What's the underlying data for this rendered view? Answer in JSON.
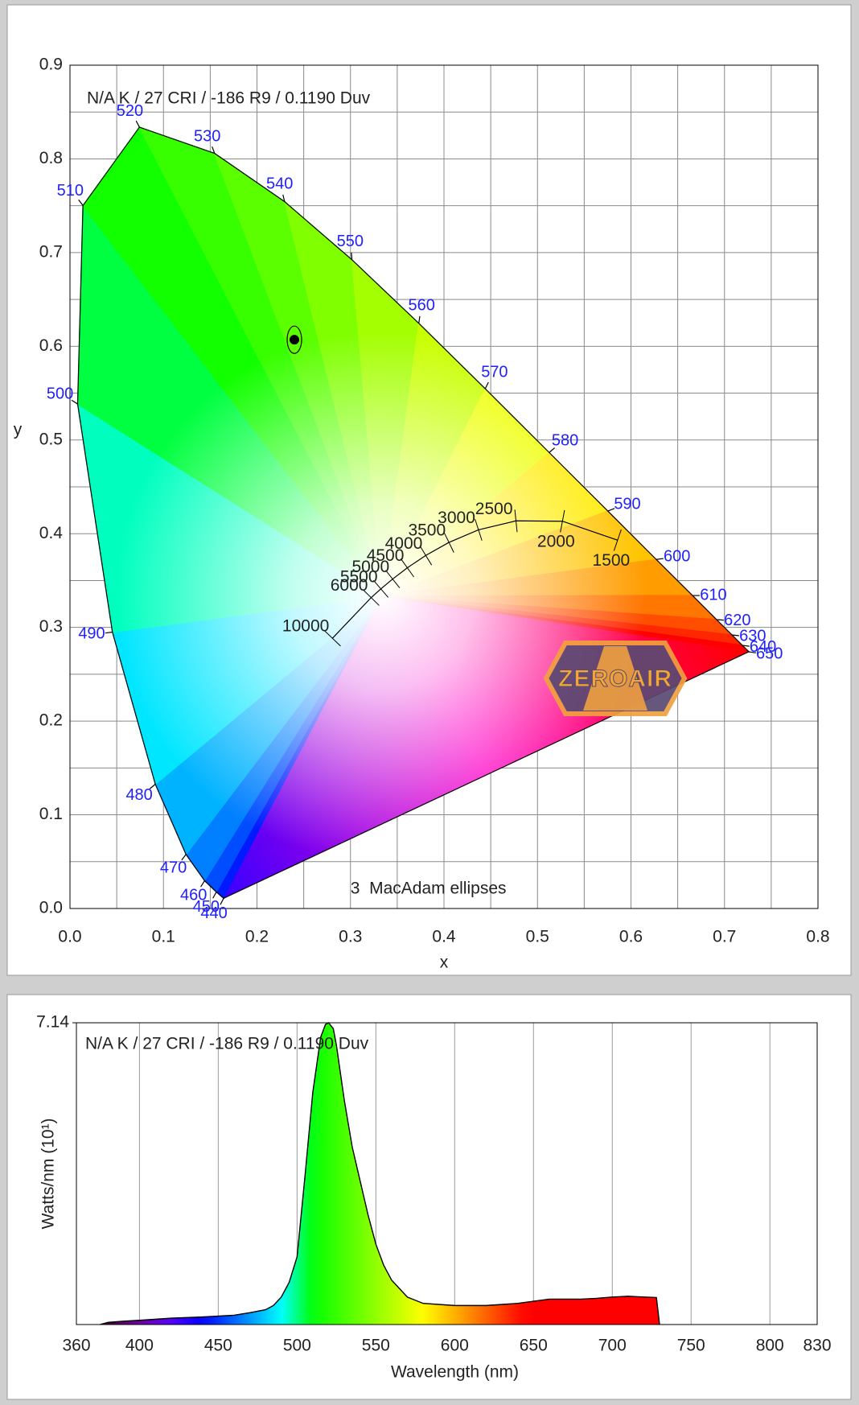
{
  "chart_data": [
    {
      "type": "chromaticity",
      "annotation": "N/A K / 27 CRI / -186 R9 / 0.1190 Duv",
      "x_label": "x",
      "y_label": "y",
      "xlim": [
        0,
        0.8
      ],
      "ylim": [
        0,
        0.9
      ],
      "xticks": [
        {
          "value": 0,
          "label": "0.0"
        },
        0.1,
        0.2,
        0.3,
        0.4,
        0.5,
        0.6,
        0.7,
        0.8
      ],
      "yticks": [
        {
          "value": 0,
          "label": "0.0"
        },
        0.1,
        0.2,
        0.3,
        0.4,
        0.5,
        0.6,
        0.7,
        0.8,
        0.9
      ],
      "grid": true,
      "locus": {
        "wavelengths": [
          440,
          450,
          460,
          470,
          480,
          490,
          500,
          510,
          520,
          530,
          540,
          550,
          560,
          570,
          580,
          590,
          600,
          610,
          620,
          630,
          640,
          650
        ],
        "x": [
          0.1644,
          0.1566,
          0.144,
          0.1241,
          0.0913,
          0.0454,
          0.0082,
          0.0139,
          0.0743,
          0.1547,
          0.2296,
          0.3016,
          0.3731,
          0.4441,
          0.5125,
          0.5752,
          0.627,
          0.6658,
          0.6915,
          0.7079,
          0.719,
          0.726
        ],
        "y": [
          0.0109,
          0.0177,
          0.0297,
          0.0578,
          0.1327,
          0.295,
          0.5384,
          0.7502,
          0.8338,
          0.8059,
          0.7543,
          0.6923,
          0.6245,
          0.5547,
          0.4866,
          0.4242,
          0.3725,
          0.334,
          0.3083,
          0.292,
          0.2809,
          0.274
        ]
      },
      "planckian": {
        "cct": [
          1500,
          2000,
          2500,
          3000,
          3500,
          4000,
          4500,
          5000,
          5500,
          6000,
          10000
        ],
        "x": [
          0.5857,
          0.5267,
          0.477,
          0.4369,
          0.4053,
          0.3805,
          0.3608,
          0.3451,
          0.3325,
          0.3221,
          0.2807
        ],
        "y": [
          0.3931,
          0.4133,
          0.4137,
          0.4041,
          0.3907,
          0.3768,
          0.3636,
          0.3516,
          0.3411,
          0.3318,
          0.2884
        ]
      },
      "point": {
        "x": 0.24,
        "y": 0.607
      },
      "footnote": "3  MacAdam ellipses",
      "watermark": "ZEROAIR"
    },
    {
      "type": "spectrum",
      "annotation": "N/A K / 27 CRI / -186 R9 / 0.1190 Duv",
      "x_label": "Wavelength (nm)",
      "y_label": "Watts/nm (10¹)",
      "xlim": [
        360,
        830
      ],
      "ylim": [
        0,
        7.14
      ],
      "xticks": [
        360,
        400,
        450,
        500,
        550,
        600,
        650,
        700,
        750,
        800,
        830
      ],
      "yticks": [
        7.14
      ],
      "grid": true,
      "x": [
        375,
        380,
        390,
        400,
        420,
        440,
        460,
        470,
        480,
        485,
        490,
        495,
        500,
        505,
        510,
        515,
        518,
        520,
        523,
        525,
        530,
        535,
        540,
        545,
        550,
        555,
        560,
        570,
        580,
        600,
        620,
        640,
        650,
        660,
        680,
        690,
        700,
        710,
        720,
        728,
        730
      ],
      "values": [
        0,
        0.05,
        0.08,
        0.1,
        0.15,
        0.18,
        0.22,
        0.28,
        0.35,
        0.45,
        0.65,
        1.0,
        1.6,
        3.5,
        5.5,
        6.8,
        7.1,
        7.14,
        7.0,
        6.6,
        5.3,
        4.2,
        3.4,
        2.6,
        1.9,
        1.4,
        1.05,
        0.65,
        0.5,
        0.45,
        0.45,
        0.5,
        0.55,
        0.6,
        0.6,
        0.62,
        0.65,
        0.67,
        0.65,
        0.64,
        0
      ]
    }
  ]
}
